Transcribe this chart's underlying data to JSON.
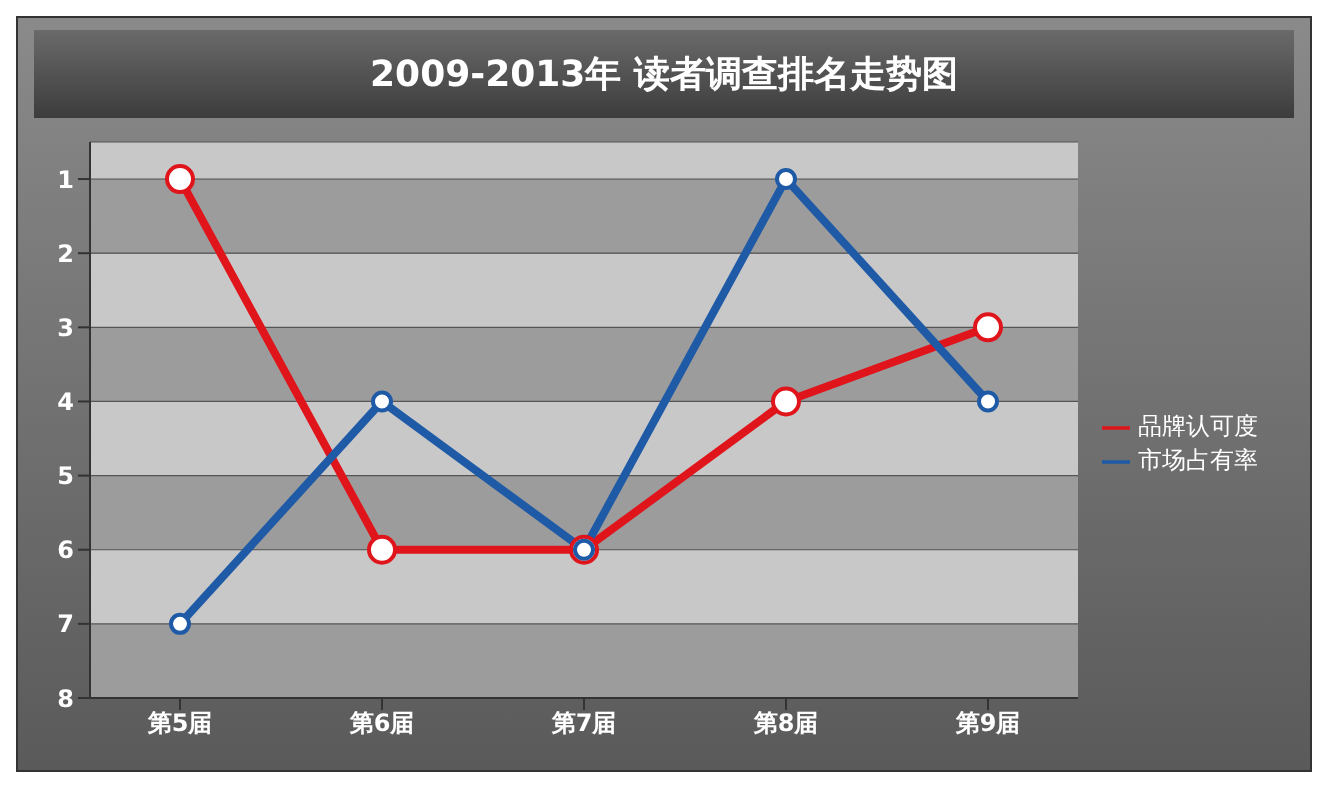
{
  "chart_data": {
    "type": "line",
    "title": "2009-2013年 读者调查排名走势图",
    "categories": [
      "第5届",
      "第6届",
      "第7届",
      "第8届",
      "第9届"
    ],
    "series": [
      {
        "name": "品牌认可度",
        "color": "#e0141b",
        "values": [
          1,
          6,
          6,
          4,
          3
        ]
      },
      {
        "name": "市场占有率",
        "color": "#1f5aa6",
        "values": [
          7,
          4,
          6,
          1,
          4
        ]
      }
    ],
    "ylim": [
      8,
      0.5
    ],
    "yticks": [
      1,
      2,
      3,
      4,
      5,
      6,
      7,
      8
    ],
    "grid": "y",
    "legend": "right",
    "marker": "circle",
    "line_style": "solid"
  }
}
